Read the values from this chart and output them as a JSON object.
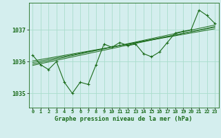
{
  "title": "Graphe pression niveau de la mer (hPa)",
  "background_color": "#d4eeee",
  "grid_color": "#aaddcc",
  "line_color": "#1a6b1a",
  "xlim": [
    -0.5,
    23.5
  ],
  "ylim": [
    1034.55,
    1037.85
  ],
  "yticks": [
    1035,
    1036,
    1037
  ],
  "xtick_labels": [
    "0",
    "1",
    "2",
    "3",
    "4",
    "5",
    "6",
    "7",
    "8",
    "9",
    "10",
    "11",
    "12",
    "13",
    "14",
    "15",
    "16",
    "17",
    "18",
    "19",
    "20",
    "21",
    "22",
    "23"
  ],
  "main_series": [
    1036.2,
    1035.9,
    1035.75,
    1036.0,
    1035.35,
    1035.0,
    1035.35,
    1035.28,
    1035.9,
    1036.55,
    1036.45,
    1036.6,
    1036.5,
    1036.55,
    1036.25,
    1036.15,
    1036.3,
    1036.6,
    1036.9,
    1036.95,
    1037.0,
    1037.62,
    1037.45,
    1037.2
  ],
  "trend_lines": [
    [
      [
        0,
        1035.88
      ],
      [
        23,
        1037.1
      ]
    ],
    [
      [
        0,
        1035.92
      ],
      [
        23,
        1037.15
      ]
    ],
    [
      [
        0,
        1035.97
      ],
      [
        23,
        1037.08
      ]
    ],
    [
      [
        0,
        1036.02
      ],
      [
        23,
        1037.03
      ]
    ]
  ]
}
